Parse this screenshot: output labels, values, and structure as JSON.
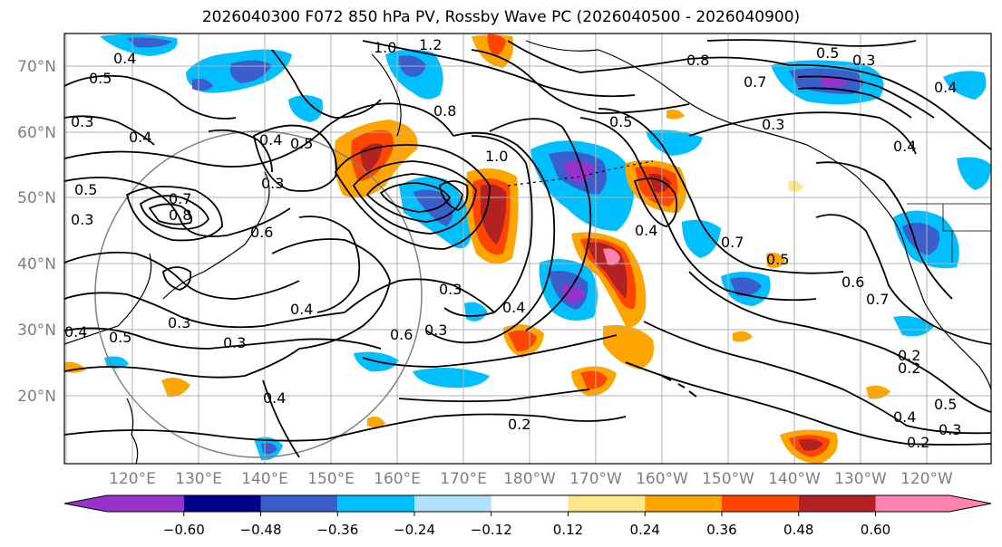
{
  "title": "2026040300 F072 850 hPa PV, Rossby Wave PC (2026040500 - 2026040900)",
  "map": {
    "lat_range": [
      10,
      75
    ],
    "lon_labels": [
      "120°E",
      "130°E",
      "140°E",
      "150°E",
      "160°E",
      "170°E",
      "180°W",
      "170°W",
      "160°W",
      "150°W",
      "140°W",
      "130°W",
      "120°W"
    ],
    "lat_labels": [
      "70°N",
      "60°N",
      "50°N",
      "40°N",
      "30°N",
      "20°N"
    ],
    "gridlines": true,
    "contour_color": "#000000",
    "coastline_color": "#000000",
    "range_ring_color": "#808080"
  },
  "contour_labels": [
    "1.0",
    "1.2",
    "0.8",
    "0.8",
    "0.7",
    "0.5",
    "0.3",
    "0.4",
    "0.5",
    "0.3",
    "0.4",
    "0.5",
    "0.3",
    "0.4",
    "0.7",
    "0.8",
    "0.5",
    "0.3",
    "0.6",
    "0.3",
    "0.3",
    "0.4",
    "0.4",
    "0.4",
    "0.3",
    "0.3",
    "0.6",
    "0.3",
    "0.5",
    "0.4",
    "0.7",
    "0.5",
    "0.6",
    "0.7",
    "0.4",
    "0.2",
    "0.2",
    "0.5",
    "0.4",
    "0.3",
    "0.2",
    "0.2",
    "1.0",
    "0.4",
    "0.5",
    "0.4"
  ],
  "shading_legend": {
    "ticks": [
      "−0.60",
      "−0.48",
      "−0.36",
      "−0.24",
      "−0.12",
      "0.12",
      "0.24",
      "0.36",
      "0.48",
      "0.60"
    ],
    "colors": [
      "#9932cc",
      "#00008b",
      "#3a5fcd",
      "#00bfff",
      "#b0e2ff",
      "#ffffff",
      "#ffe68a",
      "#ffa500",
      "#ff4500",
      "#b22222",
      "#ff83b0"
    ],
    "extend": "both"
  },
  "anomalies": [
    {
      "type": "negative",
      "level": "#00bfff"
    },
    {
      "type": "negative",
      "level": "#3a5fcd"
    },
    {
      "type": "negative",
      "level": "#9932cc"
    },
    {
      "type": "positive",
      "level": "#ffa500"
    },
    {
      "type": "positive",
      "level": "#b22222"
    },
    {
      "type": "positive",
      "level": "#ff83b0"
    }
  ]
}
